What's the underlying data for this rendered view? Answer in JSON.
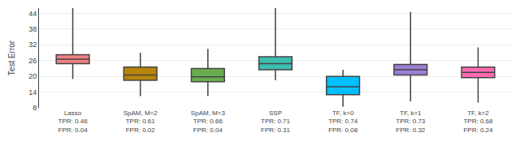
{
  "chart_data": {
    "type": "box",
    "categories": [
      "Lasso\nTPR: 0.46\nFPR: 0.04",
      "SpAM, M=2\nTPR: 0.61\nFPR: 0.02",
      "SpAM, M=3\nTPR: 0.66\nFPR: 0.04",
      "SSP\nTPR: 0.71\nFPR: 0.31",
      "TF, k=0\nTPR: 0.74\nFPR: 0.08",
      "TF, k=1\nTPR: 0.73\nFPR: 0.32",
      "TF, k=2\nTPR: 0.68\nFPR: 0.24"
    ],
    "boxes": [
      {
        "q1": 24.8,
        "median": 26.5,
        "q3": 28.2,
        "whislo": 19.0,
        "whishi": 46.0
      },
      {
        "q1": 18.5,
        "median": 20.5,
        "q3": 23.5,
        "whislo": 12.5,
        "whishi": 29.0
      },
      {
        "q1": 18.0,
        "median": 19.8,
        "q3": 23.0,
        "whislo": 12.5,
        "whishi": 30.5
      },
      {
        "q1": 22.5,
        "median": 24.8,
        "q3": 27.5,
        "whislo": 18.5,
        "whishi": 46.0
      },
      {
        "q1": 13.0,
        "median": 16.0,
        "q3": 20.0,
        "whislo": 8.5,
        "whishi": 22.5
      },
      {
        "q1": 20.5,
        "median": 22.5,
        "q3": 24.5,
        "whislo": 10.5,
        "whishi": 44.5
      },
      {
        "q1": 19.5,
        "median": 21.5,
        "q3": 23.5,
        "whislo": 10.0,
        "whishi": 31.0
      }
    ],
    "colors": [
      "#F08080",
      "#B8860B",
      "#6AAD50",
      "#3DBFB0",
      "#00BFFF",
      "#9B7FD4",
      "#FF69B4"
    ],
    "ylabel": "Test Error",
    "ylim": [
      8,
      46
    ],
    "yticks": [
      8,
      14,
      20,
      26,
      32,
      38,
      44
    ],
    "grid": true
  }
}
